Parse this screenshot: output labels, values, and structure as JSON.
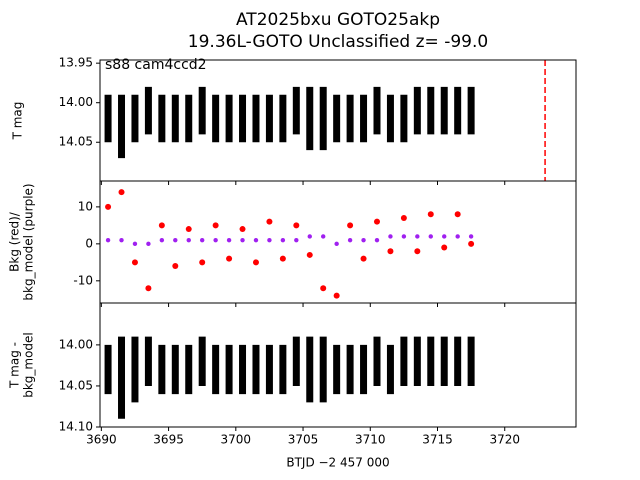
{
  "chart_data": [
    {
      "type": "scatter",
      "title": [
        "AT2025bxu  GOTO25akp",
        "19.36L-GOTO Unclassified z= -99.0"
      ],
      "annotation": "s88 cam4ccd2",
      "ylabel": [
        "T mag"
      ],
      "x": [
        3690.5,
        3691.5,
        3692.5,
        3693.5,
        3694.5,
        3695.5,
        3696.5,
        3697.5,
        3698.5,
        3699.5,
        3700.5,
        3701.5,
        3702.5,
        3703.5,
        3704.5,
        3705.5,
        3706.5,
        3707.5,
        3708.5,
        3709.5,
        3710.5,
        3711.5,
        3712.5,
        3713.5,
        3714.5,
        3715.5,
        3716.5,
        3717.5
      ],
      "series": [
        {
          "color": "#000000",
          "values": [
            14.02,
            14.03,
            14.02,
            14.01,
            14.02,
            14.02,
            14.02,
            14.01,
            14.02,
            14.02,
            14.02,
            14.02,
            14.02,
            14.02,
            14.01,
            14.02,
            14.02,
            14.02,
            14.02,
            14.02,
            14.01,
            14.02,
            14.02,
            14.01,
            14.01,
            14.01,
            14.01,
            14.01
          ],
          "errors": [
            0.03,
            0.04,
            0.03,
            0.03,
            0.03,
            0.03,
            0.03,
            0.03,
            0.03,
            0.03,
            0.03,
            0.03,
            0.03,
            0.03,
            0.03,
            0.04,
            0.04,
            0.03,
            0.03,
            0.03,
            0.03,
            0.03,
            0.03,
            0.03,
            0.03,
            0.03,
            0.03,
            0.03
          ]
        }
      ],
      "xlim": [
        3689.9,
        3725.3
      ],
      "xticks": [
        3690,
        3695,
        3700,
        3705,
        3710,
        3715,
        3720
      ],
      "ylim": [
        13.946,
        14.099
      ],
      "invert_y": true,
      "yticks": [
        13.95,
        {
          "value": 14,
          "label": "14.00"
        },
        14.05
      ],
      "vline": 3723,
      "vline_color": "#ff0000"
    },
    {
      "type": "scatter",
      "ylabel": [
        "Bkg (red)/",
        "bkg_model (purple)"
      ],
      "x": [
        3690.5,
        3691.5,
        3692.5,
        3693.5,
        3694.5,
        3695.5,
        3696.5,
        3697.5,
        3698.5,
        3699.5,
        3700.5,
        3701.5,
        3702.5,
        3703.5,
        3704.5,
        3705.5,
        3706.5,
        3707.5,
        3708.5,
        3709.5,
        3710.5,
        3711.5,
        3712.5,
        3713.5,
        3714.5,
        3715.5,
        3716.5,
        3717.5
      ],
      "series": [
        {
          "color": "#ff0000",
          "values": [
            10,
            14,
            -5,
            -12,
            5,
            -6,
            4,
            -5,
            5,
            -4,
            4,
            -5,
            6,
            -4,
            5,
            -3,
            -12,
            -14,
            5,
            -4,
            6,
            -2,
            7,
            -2,
            8,
            -1,
            8,
            0
          ]
        },
        {
          "color": "#a020f0",
          "values": [
            1,
            1,
            0,
            0,
            1,
            1,
            1,
            1,
            1,
            1,
            1,
            1,
            1,
            1,
            1,
            2,
            2,
            0,
            1,
            1,
            1,
            2,
            2,
            2,
            2,
            2,
            2,
            2
          ]
        }
      ],
      "xlim": [
        3689.9,
        3725.3
      ],
      "xticks": [
        3690,
        3695,
        3700,
        3705,
        3710,
        3715,
        3720
      ],
      "ylim": [
        -16,
        17
      ],
      "yticks": [
        -10,
        0,
        10
      ]
    },
    {
      "type": "scatter",
      "ylabel": [
        "T mag -",
        "bkg_model"
      ],
      "xlabel": "BTJD −2 457 000",
      "x": [
        3690.5,
        3691.5,
        3692.5,
        3693.5,
        3694.5,
        3695.5,
        3696.5,
        3697.5,
        3698.5,
        3699.5,
        3700.5,
        3701.5,
        3702.5,
        3703.5,
        3704.5,
        3705.5,
        3706.5,
        3707.5,
        3708.5,
        3709.5,
        3710.5,
        3711.5,
        3712.5,
        3713.5,
        3714.5,
        3715.5,
        3716.5,
        3717.5
      ],
      "series": [
        {
          "color": "#000000",
          "values": [
            14.03,
            14.04,
            14.03,
            14.02,
            14.03,
            14.03,
            14.03,
            14.02,
            14.03,
            14.03,
            14.03,
            14.03,
            14.03,
            14.03,
            14.02,
            14.03,
            14.03,
            14.03,
            14.03,
            14.03,
            14.02,
            14.03,
            14.02,
            14.02,
            14.02,
            14.02,
            14.02,
            14.02
          ],
          "errors": [
            0.03,
            0.05,
            0.04,
            0.03,
            0.03,
            0.03,
            0.03,
            0.03,
            0.03,
            0.03,
            0.03,
            0.03,
            0.03,
            0.03,
            0.03,
            0.04,
            0.04,
            0.03,
            0.03,
            0.03,
            0.03,
            0.03,
            0.03,
            0.03,
            0.03,
            0.03,
            0.03,
            0.03
          ]
        }
      ],
      "xlim": [
        3689.9,
        3725.3
      ],
      "xticks": [
        3690,
        3695,
        3700,
        3705,
        3710,
        3715,
        3720
      ],
      "ylim": [
        13.949,
        14.1
      ],
      "invert_y": true,
      "yticks": [
        {
          "value": 14,
          "label": "14.00"
        },
        14.05,
        {
          "value": 14.1,
          "label": "14.10"
        }
      ]
    }
  ]
}
